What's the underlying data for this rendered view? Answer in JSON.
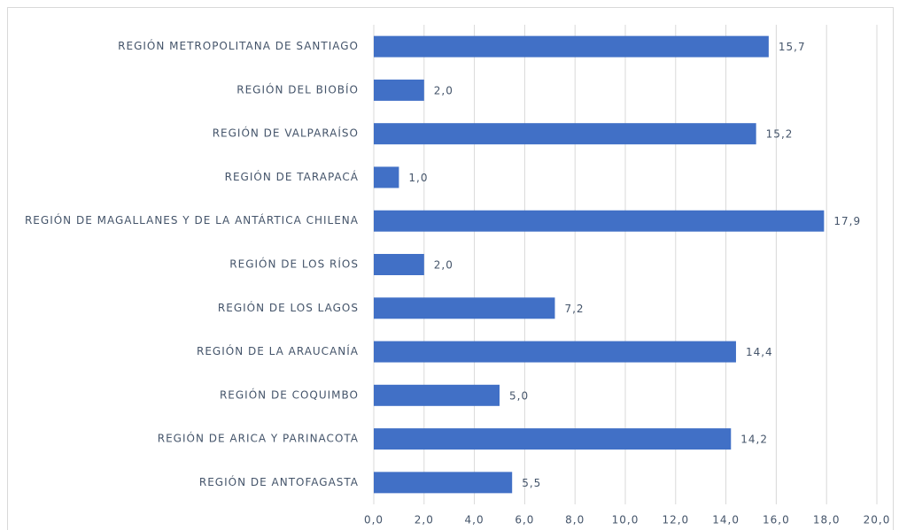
{
  "chart_data": {
    "type": "bar",
    "orientation": "horizontal",
    "categories": [
      "REGIÓN METROPOLITANA DE SANTIAGO",
      "REGIÓN DEL BIOBÍO",
      "REGIÓN DE VALPARAÍSO",
      "REGIÓN DE TARAPACÁ",
      "REGIÓN DE MAGALLANES Y DE LA ANTÁRTICA CHILENA",
      "REGIÓN DE LOS RÍOS",
      "REGIÓN DE LOS LAGOS",
      "REGIÓN DE LA ARAUCANÍA",
      "REGIÓN DE COQUIMBO",
      "REGIÓN DE ARICA Y PARINACOTA",
      "REGIÓN DE ANTOFAGASTA"
    ],
    "values": [
      15.7,
      2.0,
      15.2,
      1.0,
      17.9,
      2.0,
      7.2,
      14.4,
      5.0,
      14.2,
      5.5
    ],
    "value_labels": [
      "15,7",
      "2,0",
      "15,2",
      "1,0",
      "17,9",
      "2,0",
      "7,2",
      "14,4",
      "5,0",
      "14,2",
      "5,5"
    ],
    "color": "#4170c6",
    "xlim": [
      0,
      20
    ],
    "xticks": [
      {
        "value": 0,
        "label": "0,0"
      },
      {
        "value": 2,
        "label": "2,0"
      },
      {
        "value": 4,
        "label": "4,0"
      },
      {
        "value": 6,
        "label": "6,0"
      },
      {
        "value": 8,
        "label": "8,0"
      },
      {
        "value": 10,
        "label": "10,0"
      },
      {
        "value": 12,
        "label": "12,0"
      },
      {
        "value": 14,
        "label": "14,0"
      },
      {
        "value": 16,
        "label": "16,0"
      },
      {
        "value": 18,
        "label": "18,0"
      },
      {
        "value": 20,
        "label": "20,0"
      }
    ],
    "grid": true
  }
}
